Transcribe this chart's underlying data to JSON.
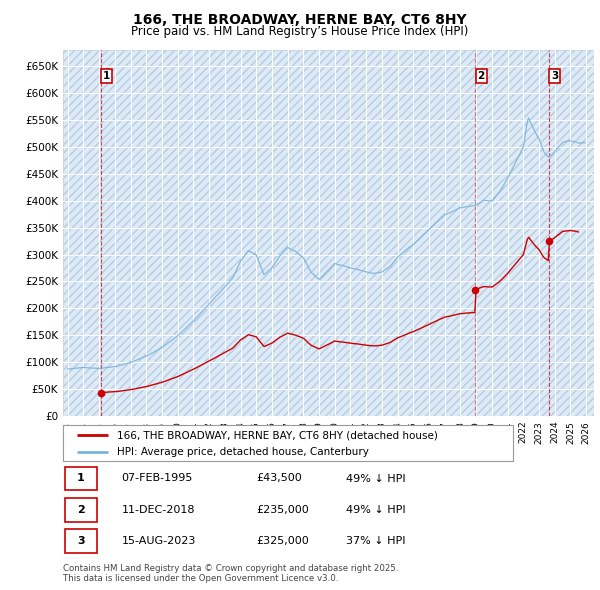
{
  "title": "166, THE BROADWAY, HERNE BAY, CT6 8HY",
  "subtitle": "Price paid vs. HM Land Registry’s House Price Index (HPI)",
  "hpi_color": "#7ab4d8",
  "price_color": "#cc0000",
  "bg_color": "#ddeaf8",
  "sale_labels": [
    "1",
    "2",
    "3"
  ],
  "sale_years": [
    1995.1,
    2018.93,
    2023.62
  ],
  "sale_prices": [
    43500,
    235000,
    325000
  ],
  "legend_entries": [
    "166, THE BROADWAY, HERNE BAY, CT6 8HY (detached house)",
    "HPI: Average price, detached house, Canterbury"
  ],
  "table_rows": [
    [
      "1",
      "07-FEB-1995",
      "£43,500",
      "49% ↓ HPI"
    ],
    [
      "2",
      "11-DEC-2018",
      "£235,000",
      "49% ↓ HPI"
    ],
    [
      "3",
      "15-AUG-2023",
      "£325,000",
      "37% ↓ HPI"
    ]
  ],
  "footnote": "Contains HM Land Registry data © Crown copyright and database right 2025.\nThis data is licensed under the Open Government Licence v3.0.",
  "ylim": [
    0,
    680000
  ],
  "yticks": [
    0,
    50000,
    100000,
    150000,
    200000,
    250000,
    300000,
    350000,
    400000,
    450000,
    500000,
    550000,
    600000,
    650000
  ],
  "ytick_labels": [
    "£0",
    "£50K",
    "£100K",
    "£150K",
    "£200K",
    "£250K",
    "£300K",
    "£350K",
    "£400K",
    "£450K",
    "£500K",
    "£550K",
    "£600K",
    "£650K"
  ],
  "xlim_start": 1992.7,
  "xlim_end": 2026.5
}
